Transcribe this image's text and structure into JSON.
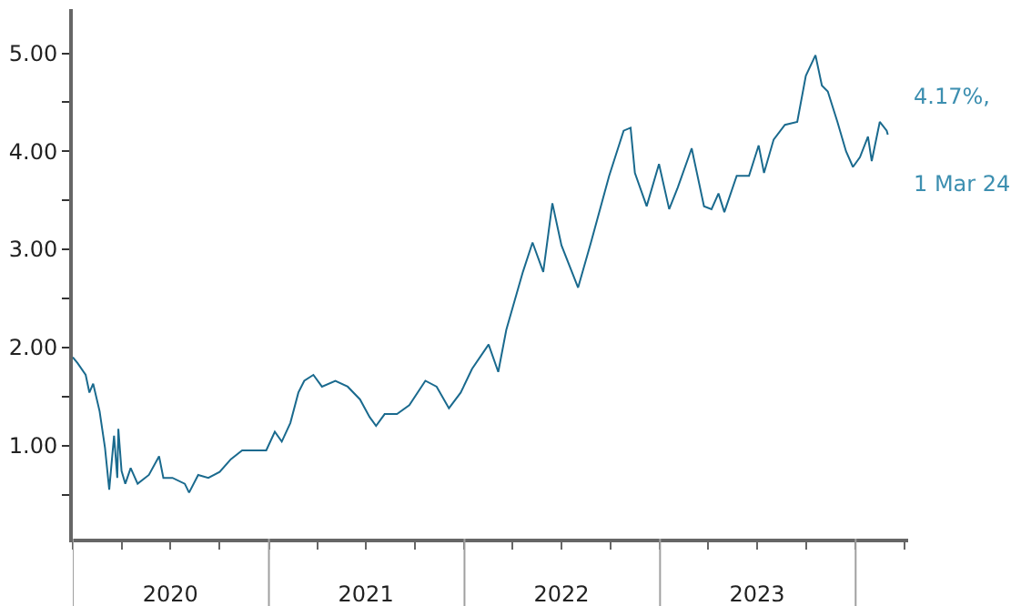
{
  "chart_data": {
    "type": "line",
    "x": [
      "2020-01-01",
      "2020-01-10",
      "2020-01-25",
      "2020-02-01",
      "2020-02-08",
      "2020-02-20",
      "2020-03-01",
      "2020-03-09",
      "2020-03-18",
      "2020-03-24",
      "2020-03-26",
      "2020-04-01",
      "2020-04-08",
      "2020-04-18",
      "2020-05-01",
      "2020-05-22",
      "2020-06-10",
      "2020-06-18",
      "2020-07-05",
      "2020-07-28",
      "2020-08-05",
      "2020-08-22",
      "2020-09-10",
      "2020-10-01",
      "2020-10-22",
      "2020-11-12",
      "2020-12-05",
      "2020-12-27",
      "2021-01-12",
      "2021-01-25",
      "2021-02-10",
      "2021-02-25",
      "2021-03-08",
      "2021-03-25",
      "2021-04-10",
      "2021-05-05",
      "2021-05-28",
      "2021-06-20",
      "2021-07-08",
      "2021-07-20",
      "2021-08-05",
      "2021-08-28",
      "2021-09-20",
      "2021-10-20",
      "2021-11-10",
      "2021-12-03",
      "2021-12-25",
      "2022-01-15",
      "2022-02-15",
      "2022-03-05",
      "2022-03-20",
      "2022-04-20",
      "2022-05-08",
      "2022-05-28",
      "2022-06-14",
      "2022-07-01",
      "2022-08-01",
      "2022-08-25",
      "2022-09-28",
      "2022-10-25",
      "2022-11-07",
      "2022-11-15",
      "2022-12-07",
      "2022-12-30",
      "2023-01-18",
      "2023-02-03",
      "2023-03-01",
      "2023-03-24",
      "2023-04-07",
      "2023-04-20",
      "2023-05-01",
      "2023-05-24",
      "2023-06-16",
      "2023-07-04",
      "2023-07-14",
      "2023-08-01",
      "2023-08-22",
      "2023-09-14",
      "2023-09-30",
      "2023-10-18",
      "2023-10-30",
      "2023-11-10",
      "2023-11-28",
      "2023-12-14",
      "2023-12-27",
      "2024-01-09",
      "2024-01-24",
      "2024-01-31",
      "2024-02-15",
      "2024-02-28",
      "2024-03-01"
    ],
    "series": [
      {
        "color": "#1a6a8e",
        "values": [
          1.9,
          1.84,
          1.72,
          1.54,
          1.63,
          1.35,
          0.98,
          0.55,
          1.1,
          0.67,
          1.17,
          0.74,
          0.61,
          0.77,
          0.61,
          0.7,
          0.89,
          0.67,
          0.67,
          0.61,
          0.52,
          0.7,
          0.67,
          0.73,
          0.86,
          0.95,
          0.95,
          0.95,
          1.14,
          1.04,
          1.23,
          1.54,
          1.66,
          1.72,
          1.6,
          1.66,
          1.6,
          1.47,
          1.29,
          1.2,
          1.32,
          1.32,
          1.41,
          1.66,
          1.6,
          1.38,
          1.54,
          1.78,
          2.03,
          1.75,
          2.18,
          2.77,
          3.07,
          2.77,
          3.47,
          3.04,
          2.61,
          3.07,
          3.75,
          4.21,
          4.24,
          3.78,
          3.44,
          3.87,
          3.41,
          3.63,
          4.03,
          3.44,
          3.41,
          3.57,
          3.38,
          3.75,
          3.75,
          4.06,
          3.78,
          4.12,
          4.27,
          4.3,
          4.77,
          4.98,
          4.67,
          4.61,
          4.3,
          4.0,
          3.84,
          3.94,
          4.15,
          3.9,
          4.3,
          4.21,
          4.17
        ]
      }
    ],
    "xlim": [
      "2020-01-01",
      "2024-04-08"
    ],
    "xticks": [
      {
        "value": "2020-01-01",
        "label": null
      },
      {
        "value": "2020-04-01",
        "label": null
      },
      {
        "value": "2020-07-01",
        "label": "2020"
      },
      {
        "value": "2020-10-01",
        "label": null
      },
      {
        "value": "2021-01-01",
        "label": null
      },
      {
        "value": "2021-04-01",
        "label": null
      },
      {
        "value": "2021-07-01",
        "label": "2021"
      },
      {
        "value": "2021-10-01",
        "label": null
      },
      {
        "value": "2022-01-01",
        "label": null
      },
      {
        "value": "2022-04-01",
        "label": null
      },
      {
        "value": "2022-07-01",
        "label": "2022"
      },
      {
        "value": "2022-10-01",
        "label": null
      },
      {
        "value": "2023-01-01",
        "label": null
      },
      {
        "value": "2023-04-01",
        "label": null
      },
      {
        "value": "2023-07-01",
        "label": "2023"
      },
      {
        "value": "2023-10-01",
        "label": null
      },
      {
        "value": "2024-01-01",
        "label": null
      },
      {
        "value": "2024-04-01",
        "label": null
      }
    ],
    "ylim": [
      0.05,
      5.45
    ],
    "yticks": [
      {
        "value": 0.5,
        "label": null
      },
      {
        "value": 1,
        "label": "1.00"
      },
      {
        "value": 1.5,
        "label": null
      },
      {
        "value": 2,
        "label": "2.00"
      },
      {
        "value": 2.5,
        "label": null
      },
      {
        "value": 3,
        "label": "3.00"
      },
      {
        "value": 3.5,
        "label": null
      },
      {
        "value": 4,
        "label": "4.00"
      },
      {
        "value": 4.5,
        "label": null
      },
      {
        "value": 5,
        "label": "5.00"
      }
    ],
    "annotations": [
      {
        "text": "4.17%,",
        "x": "2024-03-01",
        "y": 4.17
      },
      {
        "text": "1 Mar 24",
        "x": "2024-03-01",
        "y": 4.17
      }
    ],
    "marker": "none",
    "line_style": "solid"
  }
}
